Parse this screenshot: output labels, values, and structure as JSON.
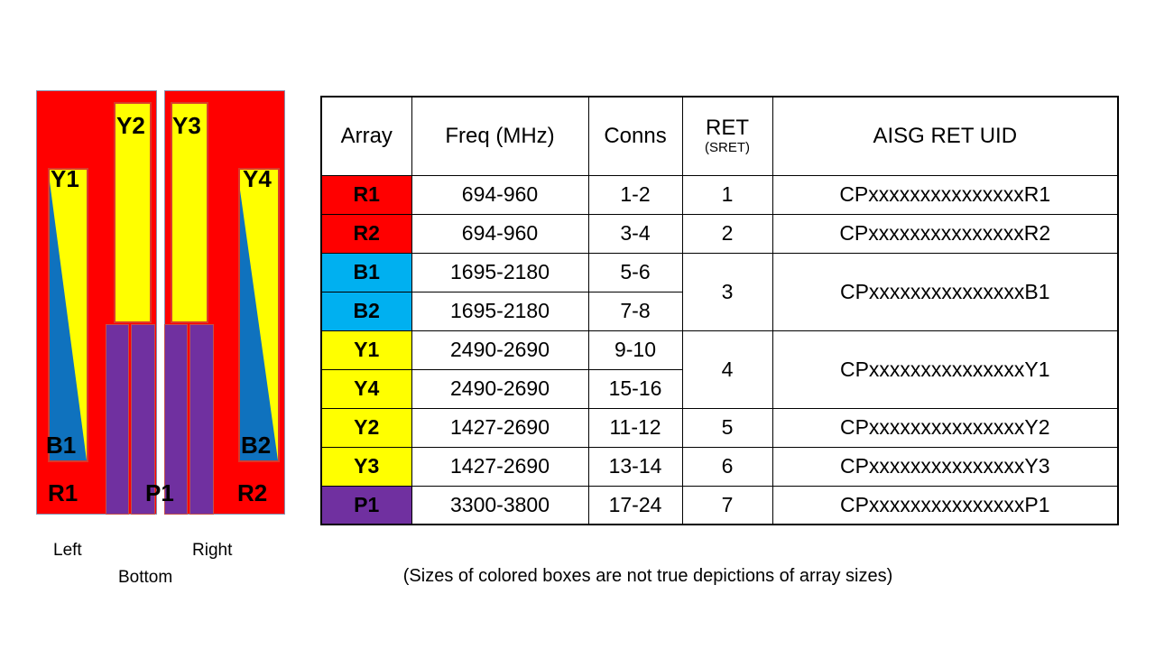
{
  "colors": {
    "red": "#ff0000",
    "yellow": "#ffff00",
    "triangle_blue": "#0f72be",
    "table_blue": "#00b0f0",
    "purple": "#7030a0",
    "white": "#ffffff"
  },
  "diagram": {
    "labels": {
      "y1": "Y1",
      "y2": "Y2",
      "y3": "Y3",
      "y4": "Y4",
      "b1": "B1",
      "b2": "B2",
      "r1": "R1",
      "r2": "R2",
      "p1": "P1"
    },
    "orientation": {
      "left": "Left",
      "right": "Right",
      "bottom": "Bottom"
    }
  },
  "table": {
    "headers": {
      "array": "Array",
      "freq": "Freq (MHz)",
      "conns": "Conns",
      "ret": "RET",
      "ret_sub": "(SRET)",
      "uid": "AISG RET UID"
    },
    "rows": [
      {
        "array": "R1",
        "freq": "694-960",
        "conns": "1-2",
        "ret": "1",
        "uid": "CPxxxxxxxxxxxxxxxR1"
      },
      {
        "array": "R2",
        "freq": "694-960",
        "conns": "3-4",
        "ret": "2",
        "uid": "CPxxxxxxxxxxxxxxxR2"
      },
      {
        "array": "B1",
        "freq": "1695-2180",
        "conns": "5-6",
        "ret": "3",
        "uid": "CPxxxxxxxxxxxxxxxB1"
      },
      {
        "array": "B2",
        "freq": "1695-2180",
        "conns": "7-8"
      },
      {
        "array": "Y1",
        "freq": "2490-2690",
        "conns": "9-10",
        "ret": "4",
        "uid": "CPxxxxxxxxxxxxxxxY1"
      },
      {
        "array": "Y4",
        "freq": "2490-2690",
        "conns": "15-16"
      },
      {
        "array": "Y2",
        "freq": "1427-2690",
        "conns": "11-12",
        "ret": "5",
        "uid": "CPxxxxxxxxxxxxxxxY2"
      },
      {
        "array": "Y3",
        "freq": "1427-2690",
        "conns": "13-14",
        "ret": "6",
        "uid": "CPxxxxxxxxxxxxxxxY3"
      },
      {
        "array": "P1",
        "freq": "3300-3800",
        "conns": "17-24",
        "ret": "7",
        "uid": "CPxxxxxxxxxxxxxxxP1"
      }
    ]
  },
  "caption": {
    "text": "(Sizes of colored boxes are not true depictions of array sizes)"
  }
}
